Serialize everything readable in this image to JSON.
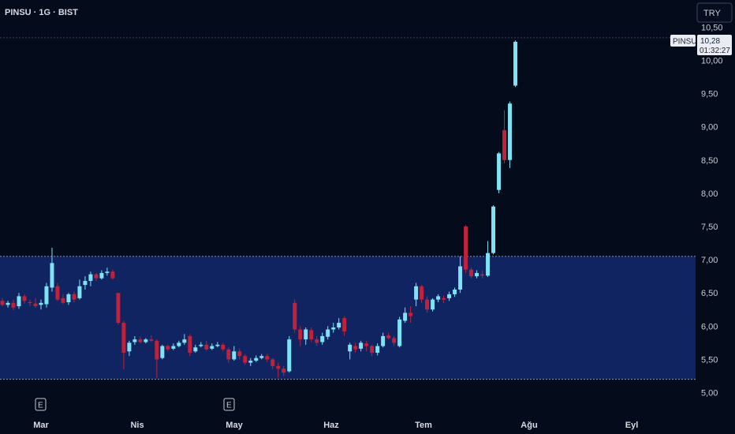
{
  "header": {
    "symbol_title": "PINSU · 1G · BIST"
  },
  "currency_badge": {
    "label": "TRY"
  },
  "price_label": {
    "symbol": "PINSU",
    "price": "10,28",
    "countdown": "01:32:27"
  },
  "event_marker": {
    "label": "E"
  },
  "colors": {
    "background": "#040b1a",
    "zone_fill": "#0f2461",
    "up_candle": "#7fe3f5",
    "down_candle": "#c0223c",
    "zone_line": "#8a93ad"
  },
  "chart_data": {
    "type": "candlestick",
    "title": "PINSU · 1G · BIST",
    "currency": "TRY",
    "y_ticks": [
      "5,00",
      "5,50",
      "6,00",
      "6,50",
      "7,00",
      "7,50",
      "8,00",
      "8,50",
      "9,00",
      "9,50",
      "10,00",
      "10,50"
    ],
    "ylim": [
      5.0,
      10.6
    ],
    "x_ticks": [
      "Mar",
      "Nis",
      "May",
      "Haz",
      "Tem",
      "Ağu",
      "Eyl"
    ],
    "zone": {
      "top": 7.05,
      "bottom": 5.2
    },
    "last_price": 10.28,
    "candles": [
      [
        6.38,
        6.32,
        6.42,
        6.3
      ],
      [
        6.32,
        6.35,
        6.38,
        6.28
      ],
      [
        6.35,
        6.28,
        6.4,
        6.24
      ],
      [
        6.3,
        6.45,
        6.5,
        6.26
      ],
      [
        6.45,
        6.38,
        6.48,
        6.34
      ],
      [
        6.36,
        6.35,
        6.4,
        6.3
      ],
      [
        6.34,
        6.3,
        6.42,
        6.28
      ],
      [
        6.32,
        6.35,
        6.4,
        6.25
      ],
      [
        6.33,
        6.6,
        6.65,
        6.28
      ],
      [
        6.58,
        6.95,
        7.18,
        6.52
      ],
      [
        6.6,
        6.4,
        6.65,
        6.38
      ],
      [
        6.42,
        6.35,
        6.48,
        6.33
      ],
      [
        6.36,
        6.48,
        6.5,
        6.32
      ],
      [
        6.48,
        6.4,
        6.52,
        6.36
      ],
      [
        6.42,
        6.6,
        6.7,
        6.4
      ],
      [
        6.62,
        6.68,
        6.75,
        6.55
      ],
      [
        6.68,
        6.78,
        6.82,
        6.6
      ],
      [
        6.78,
        6.72,
        6.8,
        6.68
      ],
      [
        6.72,
        6.8,
        6.84,
        6.7
      ],
      [
        6.8,
        6.82,
        6.88,
        6.76
      ],
      [
        6.82,
        6.72,
        6.85,
        6.7
      ],
      [
        6.5,
        6.05,
        6.48,
        6.02
      ],
      [
        6.05,
        5.6,
        6.08,
        5.35
      ],
      [
        5.62,
        5.75,
        5.78,
        5.55
      ],
      [
        5.76,
        5.8,
        5.85,
        5.72
      ],
      [
        5.8,
        5.76,
        5.84,
        5.74
      ],
      [
        5.76,
        5.8,
        5.82,
        5.74
      ],
      [
        5.8,
        5.78,
        5.86,
        5.76
      ],
      [
        5.78,
        5.5,
        5.8,
        5.22
      ],
      [
        5.52,
        5.7,
        5.72,
        5.5
      ],
      [
        5.7,
        5.65,
        5.72,
        5.62
      ],
      [
        5.66,
        5.7,
        5.74,
        5.64
      ],
      [
        5.7,
        5.75,
        5.78,
        5.68
      ],
      [
        5.75,
        5.8,
        5.88,
        5.72
      ],
      [
        5.85,
        5.6,
        5.88,
        5.55
      ],
      [
        5.62,
        5.68,
        5.72,
        5.6
      ],
      [
        5.7,
        5.72,
        5.76,
        5.68
      ],
      [
        5.72,
        5.65,
        5.78,
        5.63
      ],
      [
        5.66,
        5.7,
        5.74,
        5.64
      ],
      [
        5.7,
        5.72,
        5.76,
        5.68
      ],
      [
        5.72,
        5.65,
        5.75,
        5.62
      ],
      [
        5.65,
        5.5,
        5.68,
        5.45
      ],
      [
        5.5,
        5.62,
        5.7,
        5.48
      ],
      [
        5.62,
        5.55,
        5.66,
        5.5
      ],
      [
        5.55,
        5.45,
        5.58,
        5.42
      ],
      [
        5.45,
        5.48,
        5.52,
        5.4
      ],
      [
        5.48,
        5.52,
        5.56,
        5.46
      ],
      [
        5.52,
        5.55,
        5.58,
        5.5
      ],
      [
        5.55,
        5.5,
        5.58,
        5.46
      ],
      [
        5.5,
        5.4,
        5.52,
        5.35
      ],
      [
        5.4,
        5.36,
        5.45,
        5.22
      ],
      [
        5.36,
        5.3,
        5.4,
        5.25
      ],
      [
        5.32,
        5.8,
        5.85,
        5.3
      ],
      [
        6.35,
        5.95,
        6.4,
        5.9
      ],
      [
        5.95,
        5.8,
        6.0,
        5.7
      ],
      [
        5.8,
        5.95,
        5.98,
        5.72
      ],
      [
        5.94,
        5.8,
        5.98,
        5.76
      ],
      [
        5.8,
        5.75,
        5.85,
        5.7
      ],
      [
        5.76,
        5.85,
        5.9,
        5.72
      ],
      [
        5.84,
        5.95,
        6.0,
        5.8
      ],
      [
        5.95,
        5.98,
        6.05,
        5.9
      ],
      [
        5.98,
        6.05,
        6.12,
        5.95
      ],
      [
        6.12,
        5.92,
        6.15,
        5.85
      ],
      [
        5.62,
        5.72,
        5.75,
        5.5
      ],
      [
        5.7,
        5.65,
        5.75,
        5.6
      ],
      [
        5.66,
        5.75,
        5.78,
        5.62
      ],
      [
        5.74,
        5.7,
        5.78,
        5.62
      ],
      [
        5.7,
        5.6,
        5.72,
        5.55
      ],
      [
        5.6,
        5.7,
        5.74,
        5.56
      ],
      [
        5.7,
        5.85,
        5.9,
        5.68
      ],
      [
        5.86,
        5.82,
        5.9,
        5.8
      ],
      [
        5.82,
        5.75,
        5.85,
        5.7
      ],
      [
        5.7,
        6.1,
        6.14,
        5.68
      ],
      [
        6.08,
        6.2,
        6.28,
        6.05
      ],
      [
        6.2,
        6.15,
        6.3,
        6.05
      ],
      [
        6.4,
        6.6,
        6.65,
        6.3
      ],
      [
        6.6,
        6.4,
        6.62,
        6.35
      ],
      [
        6.4,
        6.25,
        6.45,
        6.2
      ],
      [
        6.25,
        6.4,
        6.42,
        6.22
      ],
      [
        6.4,
        6.45,
        6.48,
        6.36
      ],
      [
        6.42,
        6.4,
        6.46,
        6.35
      ],
      [
        6.42,
        6.48,
        6.52,
        6.38
      ],
      [
        6.48,
        6.55,
        6.58,
        6.44
      ],
      [
        6.55,
        6.9,
        7.05,
        6.5
      ],
      [
        7.5,
        6.85,
        7.52,
        6.8
      ],
      [
        6.85,
        6.75,
        6.88,
        6.72
      ],
      [
        6.75,
        6.8,
        6.84,
        6.72
      ],
      [
        6.78,
        6.76,
        6.84,
        6.72
      ],
      [
        6.76,
        7.1,
        7.28,
        6.74
      ],
      [
        7.1,
        7.8,
        7.82,
        7.08
      ],
      [
        8.05,
        8.6,
        8.62,
        8.0
      ],
      [
        8.95,
        8.5,
        9.25,
        8.45
      ],
      [
        8.5,
        9.35,
        9.38,
        8.38
      ],
      [
        9.62,
        10.28,
        10.3,
        9.6
      ]
    ]
  }
}
